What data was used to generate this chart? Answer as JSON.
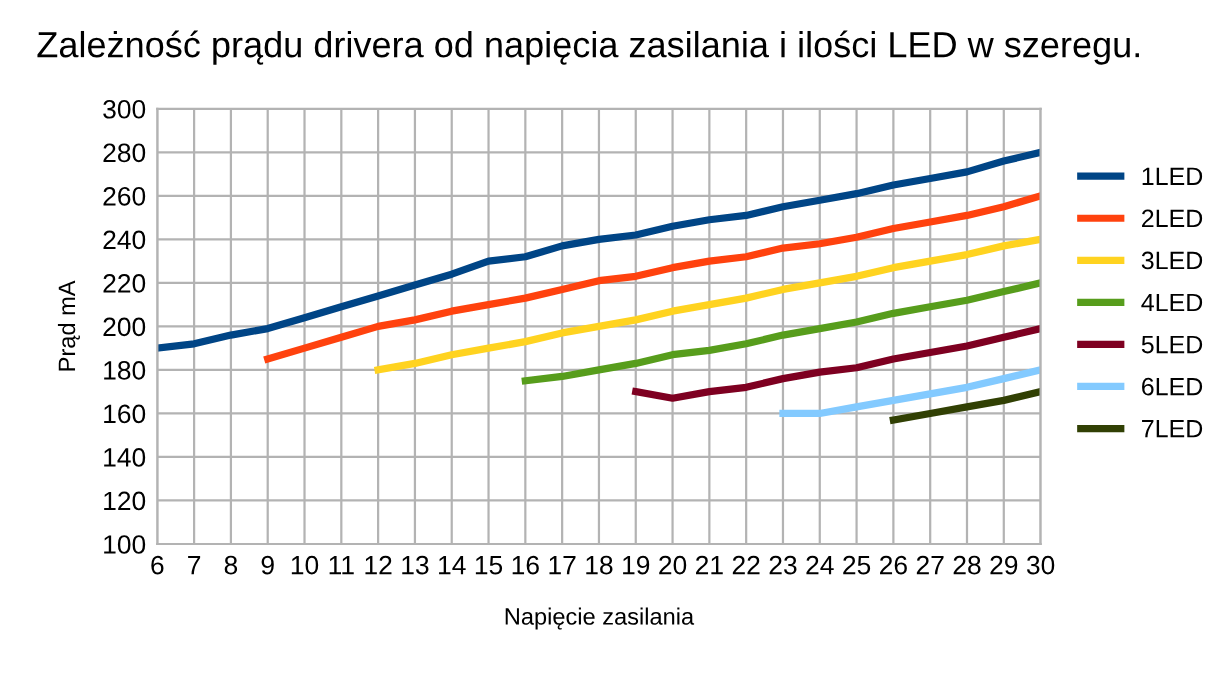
{
  "chart_data": {
    "type": "line",
    "title": "Zależność prądu drivera od napięcia zasilania i ilości LED w szeregu.",
    "xlabel": "Napięcie zasilania",
    "ylabel": "Prąd mA",
    "xlim": [
      6,
      30
    ],
    "xticks": [
      6,
      7,
      8,
      9,
      10,
      11,
      12,
      13,
      14,
      15,
      16,
      17,
      18,
      19,
      20,
      21,
      22,
      23,
      24,
      25,
      26,
      27,
      28,
      29,
      30
    ],
    "ylim": [
      100,
      300
    ],
    "yticks": [
      100,
      120,
      140,
      160,
      180,
      200,
      220,
      240,
      260,
      280,
      300
    ],
    "grid": true,
    "legend": "right",
    "marker": "none",
    "line_style": "solid",
    "series": [
      {
        "name": "1LED",
        "color": "#004586",
        "x": [
          6,
          7,
          8,
          9,
          10,
          11,
          12,
          13,
          14,
          15,
          16,
          17,
          18,
          19,
          20,
          21,
          22,
          23,
          24,
          25,
          26,
          27,
          28,
          29,
          30
        ],
        "values": [
          190,
          192,
          196,
          199,
          204,
          209,
          214,
          219,
          224,
          230,
          232,
          237,
          240,
          242,
          246,
          249,
          251,
          255,
          258,
          261,
          265,
          268,
          271,
          276,
          280
        ]
      },
      {
        "name": "2LED",
        "color": "#ff420e",
        "x": [
          9,
          10,
          11,
          12,
          13,
          14,
          15,
          16,
          17,
          18,
          19,
          20,
          21,
          22,
          23,
          24,
          25,
          26,
          27,
          28,
          29,
          30
        ],
        "values": [
          185,
          190,
          195,
          200,
          203,
          207,
          210,
          213,
          217,
          221,
          223,
          227,
          230,
          232,
          236,
          238,
          241,
          245,
          248,
          251,
          255,
          260
        ]
      },
      {
        "name": "3LED",
        "color": "#ffd320",
        "x": [
          12,
          13,
          14,
          15,
          16,
          17,
          18,
          19,
          20,
          21,
          22,
          23,
          24,
          25,
          26,
          27,
          28,
          29,
          30
        ],
        "values": [
          180,
          183,
          187,
          190,
          193,
          197,
          200,
          203,
          207,
          210,
          213,
          217,
          220,
          223,
          227,
          230,
          233,
          237,
          240
        ]
      },
      {
        "name": "4LED",
        "color": "#579d1c",
        "x": [
          16,
          17,
          18,
          19,
          20,
          21,
          22,
          23,
          24,
          25,
          26,
          27,
          28,
          29,
          30
        ],
        "values": [
          175,
          177,
          180,
          183,
          187,
          189,
          192,
          196,
          199,
          202,
          206,
          209,
          212,
          216,
          220
        ]
      },
      {
        "name": "5LED",
        "color": "#7e0021",
        "x": [
          19,
          20,
          21,
          22,
          23,
          24,
          25,
          26,
          27,
          28,
          29,
          30
        ],
        "values": [
          170,
          167,
          170,
          172,
          176,
          179,
          181,
          185,
          188,
          191,
          195,
          199
        ]
      },
      {
        "name": "6LED",
        "color": "#83caff",
        "x": [
          23,
          24,
          25,
          26,
          27,
          28,
          29,
          30
        ],
        "values": [
          160,
          160,
          163,
          166,
          169,
          172,
          176,
          180
        ]
      },
      {
        "name": "7LED",
        "color": "#314004",
        "x": [
          26,
          27,
          28,
          29,
          30
        ],
        "values": [
          157,
          160,
          163,
          166,
          170
        ]
      }
    ]
  }
}
